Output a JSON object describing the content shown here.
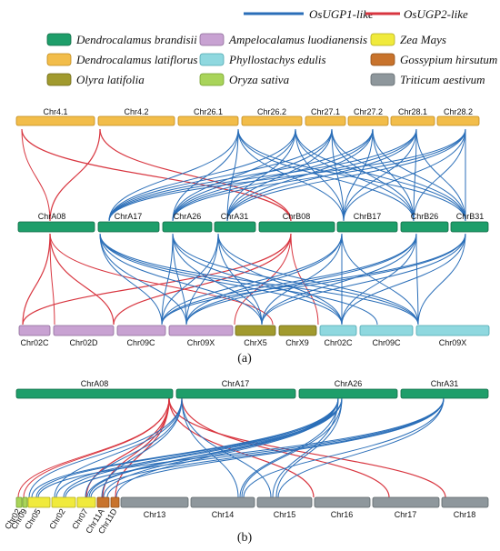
{
  "legend": {
    "lines": [
      {
        "label": "OsUGP1-like",
        "color": "#2a6eb8"
      },
      {
        "label": "OsUGP2-like",
        "color": "#d8353f"
      }
    ],
    "species": [
      {
        "label": "Dendrocalamus brandisii",
        "fill": "#1e9e6a",
        "stroke": "#0f6a44"
      },
      {
        "label": "Ampelocalamus luodianensis",
        "fill": "#c8a2d2",
        "stroke": "#8d6b98"
      },
      {
        "label": "Zea Mays",
        "fill": "#f0ea3c",
        "stroke": "#b3ad1e"
      },
      {
        "label": "Dendrocalamus latiflorus",
        "fill": "#f2bd4a",
        "stroke": "#c08a1c"
      },
      {
        "label": "Phyllostachys edulis",
        "fill": "#8fd8df",
        "stroke": "#4ea6b0"
      },
      {
        "label": "Gossypium hirsutum",
        "fill": "#c8732c",
        "stroke": "#8e4c14"
      },
      {
        "label": "Olyra latifolia",
        "fill": "#a19a2e",
        "stroke": "#6c6716"
      },
      {
        "label": "Oryza sativa",
        "fill": "#a9d45a",
        "stroke": "#74a02c"
      },
      {
        "label": "Triticum aestivum",
        "fill": "#8e979c",
        "stroke": "#5e666a"
      }
    ]
  },
  "panels": [
    {
      "label": "(a)",
      "tracks": [
        {
          "labels_below": false,
          "chromosomes": [
            {
              "name": "Chr4.1",
              "species": 3
            },
            {
              "name": "Chr4.2",
              "species": 3
            },
            {
              "name": "Chr26.1",
              "species": 3
            },
            {
              "name": "Chr26.2",
              "species": 3
            },
            {
              "name": "Chr27.1",
              "species": 3
            },
            {
              "name": "Chr27.2",
              "species": 3
            },
            {
              "name": "Chr28.1",
              "species": 3
            },
            {
              "name": "Chr28.2",
              "species": 3
            }
          ]
        },
        {
          "labels_below": false,
          "chromosomes": [
            {
              "name": "ChrA08",
              "species": 0
            },
            {
              "name": "ChrA17",
              "species": 0
            },
            {
              "name": "ChrA26",
              "species": 0
            },
            {
              "name": "ChrA31",
              "species": 0
            },
            {
              "name": "ChrB08",
              "species": 0
            },
            {
              "name": "ChrB17",
              "species": 0
            },
            {
              "name": "ChrB26",
              "species": 0
            },
            {
              "name": "ChrB31",
              "species": 0
            }
          ]
        },
        {
          "labels_below": true,
          "chromosomes": [
            {
              "name": "Chr02C",
              "species": 1
            },
            {
              "name": "Chr02D",
              "species": 1
            },
            {
              "name": "Chr09C",
              "species": 1
            },
            {
              "name": "Chr09X",
              "species": 1
            },
            {
              "name": "ChrX5",
              "species": 6
            },
            {
              "name": "ChrX9",
              "species": 6
            },
            {
              "name": "Chr02C",
              "species": 4
            },
            {
              "name": "Chr09C",
              "species": 4
            },
            {
              "name": "Chr09X",
              "species": 4
            }
          ]
        }
      ]
    },
    {
      "label": "(b)",
      "tracks": [
        {
          "labels_below": false,
          "chromosomes": [
            {
              "name": "ChrA08",
              "species": 0
            },
            {
              "name": "ChrA17",
              "species": 0
            },
            {
              "name": "ChrA26",
              "species": 0
            },
            {
              "name": "ChrA31",
              "species": 0
            }
          ]
        },
        {
          "labels_below": true,
          "chromosomes": [
            {
              "name": "Chr02",
              "species": 7
            },
            {
              "name": "Chr09",
              "species": 7
            },
            {
              "name": "Chr05",
              "species": 2
            },
            {
              "name": "Chr02",
              "species": 2
            },
            {
              "name": "Chr07",
              "species": 2
            },
            {
              "name": "Chr11A",
              "species": 5
            },
            {
              "name": "Chr11D",
              "species": 5
            },
            {
              "name": "Chr13",
              "species": 8
            },
            {
              "name": "Chr14",
              "species": 8
            },
            {
              "name": "Chr15",
              "species": 8
            },
            {
              "name": "Chr16",
              "species": 8
            },
            {
              "name": "Chr17",
              "species": 8
            },
            {
              "name": "Chr18",
              "species": 8
            }
          ]
        }
      ]
    }
  ]
}
